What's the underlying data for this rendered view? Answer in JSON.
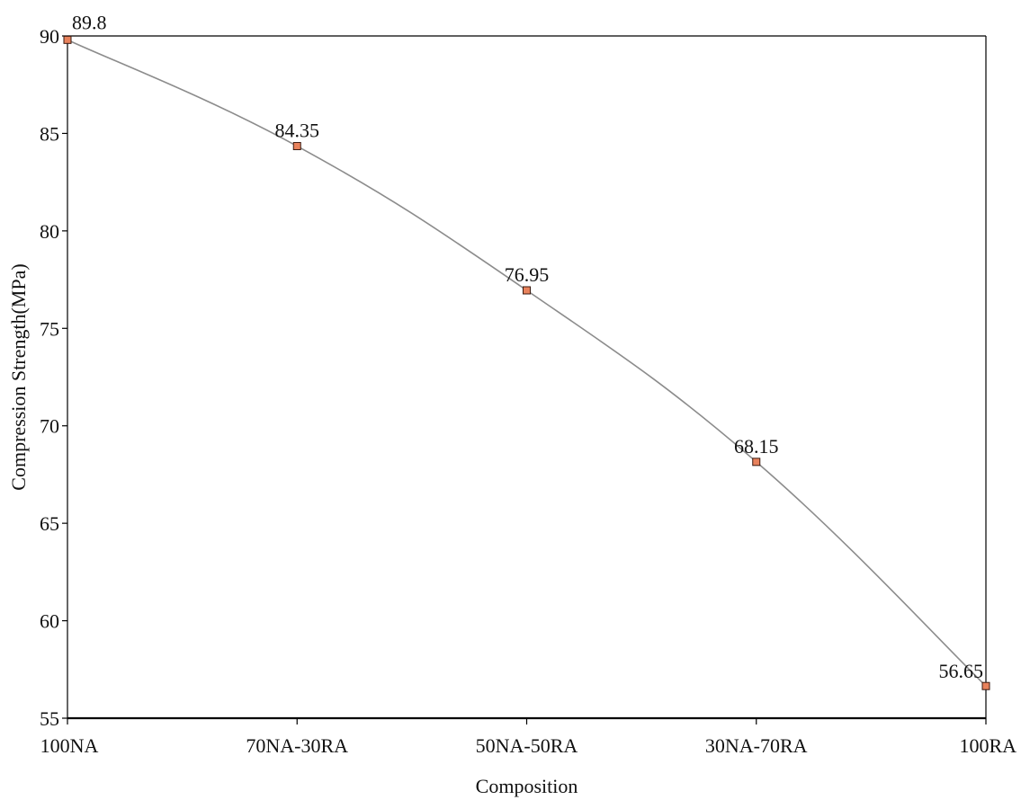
{
  "chart_data": {
    "type": "line",
    "title": "",
    "xlabel": "Composition",
    "ylabel": "Compression Strength(MPa)",
    "categories": [
      "100NA",
      "70NA-30RA",
      "50NA-50RA",
      "30NA-70RA",
      "100RA"
    ],
    "series": [
      {
        "values": [
          89.8,
          84.35,
          76.95,
          68.15,
          56.65
        ],
        "labels": [
          "89.8",
          "84.35",
          "76.95",
          "68.15",
          "56.65"
        ]
      }
    ],
    "ylim": [
      55,
      90
    ],
    "yticks": [
      55,
      60,
      65,
      70,
      75,
      80,
      85,
      90
    ],
    "grid": false,
    "legend": "none",
    "colors": {
      "line": "#8c8c8c",
      "marker_fill": "#e8825c",
      "marker_edge": "#3a1a10",
      "axis": "#000000"
    }
  }
}
